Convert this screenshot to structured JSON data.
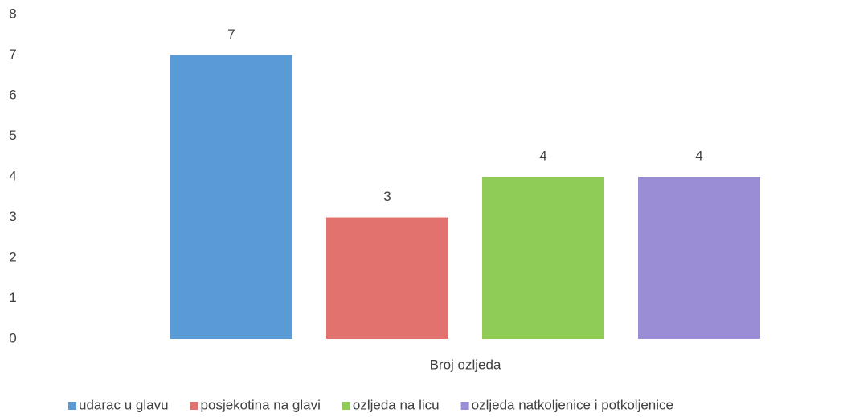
{
  "chart_data": {
    "type": "bar",
    "categories": [
      "Broj ozljeda"
    ],
    "series": [
      {
        "name": "udarac u glavu",
        "color": "#5b9bd5",
        "values": [
          7
        ]
      },
      {
        "name": "posjekotina na glavi",
        "color": "#e2726e",
        "values": [
          3
        ]
      },
      {
        "name": "ozljeda na licu",
        "color": "#8fcc57",
        "values": [
          4
        ]
      },
      {
        "name": "ozljeda natkoljenice i potkoljenice",
        "color": "#9b8dd5",
        "values": [
          4
        ]
      }
    ],
    "ylim": [
      0,
      8
    ],
    "yticks": [
      0,
      1,
      2,
      3,
      4,
      5,
      6,
      7,
      8
    ],
    "grid": false,
    "legend": "bottom"
  }
}
